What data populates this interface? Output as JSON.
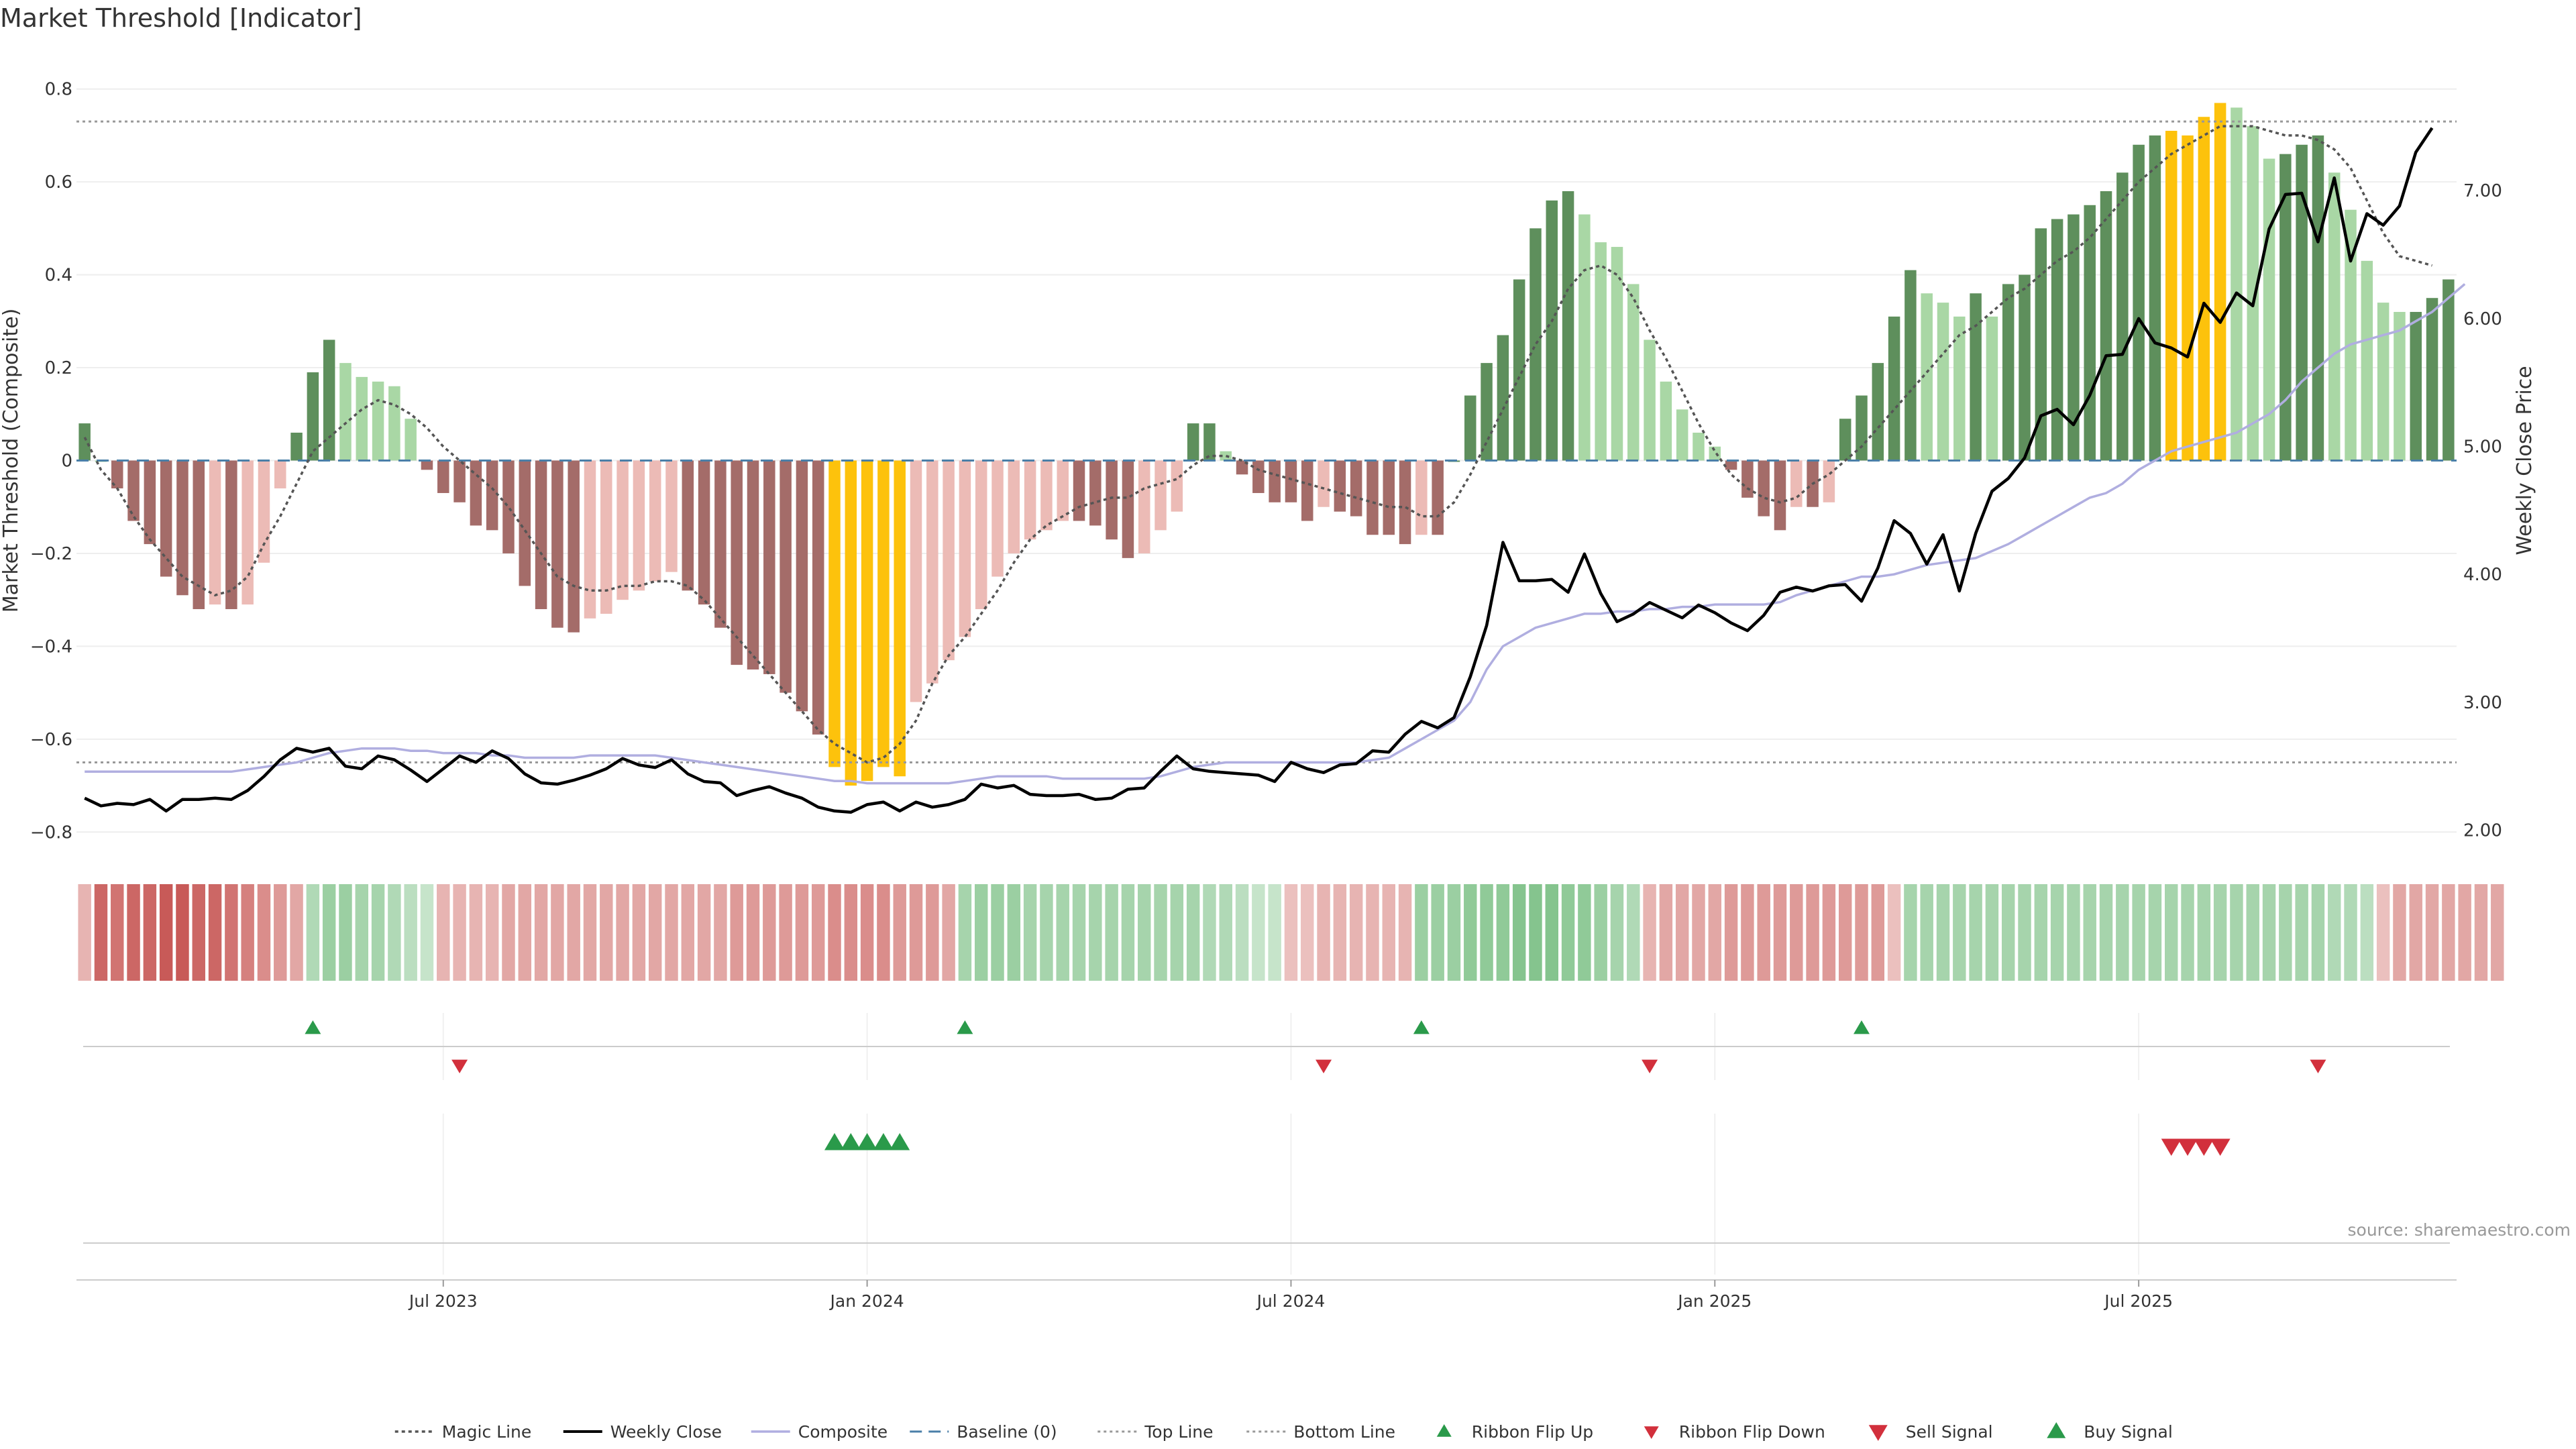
{
  "title": "Market Threshold [Indicator]",
  "source": "source: sharemaestro.com",
  "colors": {
    "bar_dark_green": "#5e8f5c",
    "bar_light_green": "#a9d7a5",
    "bar_dark_red": "#a46c69",
    "bar_light_red": "#ecbbb6",
    "bar_gold": "#fdc20c",
    "magic_line": "#555555",
    "weekly_close": "#000000",
    "composite": "#b0aee0",
    "baseline": "#4a7fa8",
    "threshold_line": "#999999",
    "buy": "#2a9a4a",
    "sell": "#d2303c"
  },
  "chart_data": {
    "type": "bar",
    "left_axis": {
      "label": "Market Threshold (Composite)",
      "ylim": [
        -0.84,
        0.84
      ],
      "ticks": [
        0.8,
        0.6,
        0.4,
        0.2,
        0,
        -0.2,
        -0.4,
        -0.6,
        -0.8
      ],
      "tick_labels": [
        "0.8",
        "0.6",
        "0.4",
        "0.2",
        "0",
        "−0.2",
        "−0.4",
        "−0.6",
        "−0.8"
      ]
    },
    "right_axis": {
      "label": "Weekly Close Price",
      "ylim": [
        1.84,
        7.94
      ],
      "ticks": [
        7.0,
        6.0,
        5.0,
        4.0,
        3.0,
        2.0
      ],
      "tick_labels": [
        "7.00",
        "6.00",
        "5.00",
        "4.00",
        "3.00",
        "2.00"
      ]
    },
    "x_ticks": [
      {
        "label": "Jul 2023",
        "week": 22
      },
      {
        "label": "Jan 2024",
        "week": 48
      },
      {
        "label": "Jul 2024",
        "week": 74
      },
      {
        "label": "Jan 2025",
        "week": 100
      },
      {
        "label": "Jul 2025",
        "week": 126
      }
    ],
    "top_line": 0.73,
    "bottom_line": -0.65,
    "baseline": 0,
    "composite_bars": [
      0.08,
      0.0,
      -0.06,
      -0.13,
      -0.18,
      -0.25,
      -0.29,
      -0.32,
      -0.31,
      -0.32,
      -0.31,
      -0.22,
      -0.06,
      0.06,
      0.19,
      0.26,
      0.21,
      0.18,
      0.17,
      0.16,
      0.09,
      -0.02,
      -0.07,
      -0.09,
      -0.14,
      -0.15,
      -0.2,
      -0.27,
      -0.32,
      -0.36,
      -0.37,
      -0.34,
      -0.33,
      -0.3,
      -0.28,
      -0.26,
      -0.24,
      -0.28,
      -0.31,
      -0.36,
      -0.44,
      -0.45,
      -0.46,
      -0.5,
      -0.54,
      -0.59,
      -0.66,
      -0.7,
      -0.69,
      -0.66,
      -0.68,
      -0.52,
      -0.48,
      -0.43,
      -0.38,
      -0.32,
      -0.25,
      -0.2,
      -0.17,
      -0.15,
      -0.13,
      -0.13,
      -0.14,
      -0.17,
      -0.21,
      -0.2,
      -0.15,
      -0.11,
      0.08,
      0.08,
      0.02,
      -0.03,
      -0.07,
      -0.09,
      -0.09,
      -0.13,
      -0.1,
      -0.11,
      -0.12,
      -0.16,
      -0.16,
      -0.18,
      -0.16,
      -0.16,
      0.0,
      0.14,
      0.21,
      0.27,
      0.39,
      0.5,
      0.56,
      0.58,
      0.53,
      0.47,
      0.46,
      0.38,
      0.26,
      0.17,
      0.11,
      0.06,
      0.03,
      -0.02,
      -0.08,
      -0.12,
      -0.15,
      -0.1,
      -0.1,
      -0.09,
      0.09,
      0.14,
      0.21,
      0.31,
      0.41,
      0.36,
      0.34,
      0.31,
      0.36,
      0.31,
      0.38,
      0.4,
      0.5,
      0.52,
      0.53,
      0.55,
      0.58,
      0.62,
      0.68,
      0.7,
      0.71,
      0.7,
      0.74,
      0.77,
      0.76,
      0.72,
      0.65,
      0.66,
      0.68,
      0.7,
      0.62,
      0.54,
      0.43,
      0.34,
      0.32,
      0.32,
      0.35,
      0.39
    ],
    "gold_bar_indices": [
      46,
      47,
      48,
      49,
      50,
      128,
      129,
      130,
      131
    ],
    "weekly_close": [
      2.25,
      2.19,
      2.21,
      2.2,
      2.24,
      2.15,
      2.24,
      2.24,
      2.25,
      2.24,
      2.31,
      2.42,
      2.55,
      2.64,
      2.61,
      2.64,
      2.5,
      2.48,
      2.58,
      2.55,
      2.47,
      2.38,
      2.48,
      2.58,
      2.53,
      2.62,
      2.56,
      2.44,
      2.37,
      2.36,
      2.39,
      2.43,
      2.48,
      2.56,
      2.51,
      2.49,
      2.55,
      2.44,
      2.38,
      2.37,
      2.27,
      2.31,
      2.34,
      2.29,
      2.25,
      2.18,
      2.15,
      2.14,
      2.2,
      2.22,
      2.15,
      2.22,
      2.18,
      2.2,
      2.24,
      2.36,
      2.33,
      2.35,
      2.28,
      2.27,
      2.27,
      2.28,
      2.24,
      2.25,
      2.32,
      2.33,
      2.46,
      2.58,
      2.48,
      2.46,
      2.45,
      2.44,
      2.43,
      2.38,
      2.53,
      2.48,
      2.45,
      2.51,
      2.52,
      2.62,
      2.61,
      2.75,
      2.85,
      2.8,
      2.88,
      3.2,
      3.6,
      4.25,
      3.95,
      3.95,
      3.96,
      3.86,
      4.16,
      3.85,
      3.63,
      3.69,
      3.78,
      3.72,
      3.66,
      3.76,
      3.7,
      3.62,
      3.56,
      3.68,
      3.86,
      3.9,
      3.87,
      3.91,
      3.92,
      3.79,
      4.05,
      4.42,
      4.32,
      4.08,
      4.31,
      3.87,
      4.32,
      4.65,
      4.75,
      4.91,
      5.24,
      5.29,
      5.17,
      5.4,
      5.71,
      5.72,
      6.0,
      5.81,
      5.77,
      5.7,
      6.12,
      5.97,
      6.2,
      6.1,
      6.7,
      6.97,
      6.98,
      6.6,
      7.1,
      6.45,
      6.82,
      6.73,
      6.88,
      7.3,
      7.49
    ],
    "composite_line": [
      -0.67,
      -0.67,
      -0.67,
      -0.67,
      -0.67,
      -0.67,
      -0.67,
      -0.67,
      -0.67,
      -0.67,
      -0.665,
      -0.66,
      -0.655,
      -0.65,
      -0.64,
      -0.63,
      -0.625,
      -0.62,
      -0.62,
      -0.62,
      -0.625,
      -0.625,
      -0.63,
      -0.63,
      -0.63,
      -0.635,
      -0.635,
      -0.64,
      -0.64,
      -0.64,
      -0.64,
      -0.635,
      -0.635,
      -0.635,
      -0.635,
      -0.635,
      -0.64,
      -0.645,
      -0.65,
      -0.655,
      -0.66,
      -0.665,
      -0.67,
      -0.675,
      -0.68,
      -0.685,
      -0.69,
      -0.69,
      -0.695,
      -0.695,
      -0.695,
      -0.695,
      -0.695,
      -0.695,
      -0.69,
      -0.685,
      -0.68,
      -0.68,
      -0.68,
      -0.68,
      -0.685,
      -0.685,
      -0.685,
      -0.685,
      -0.685,
      -0.685,
      -0.68,
      -0.67,
      -0.66,
      -0.655,
      -0.65,
      -0.65,
      -0.65,
      -0.65,
      -0.65,
      -0.65,
      -0.65,
      -0.65,
      -0.65,
      -0.645,
      -0.64,
      -0.62,
      -0.6,
      -0.58,
      -0.56,
      -0.52,
      -0.45,
      -0.4,
      -0.38,
      -0.36,
      -0.35,
      -0.34,
      -0.33,
      -0.33,
      -0.325,
      -0.325,
      -0.32,
      -0.32,
      -0.315,
      -0.315,
      -0.31,
      -0.31,
      -0.31,
      -0.31,
      -0.305,
      -0.29,
      -0.28,
      -0.27,
      -0.26,
      -0.25,
      -0.25,
      -0.245,
      -0.235,
      -0.225,
      -0.22,
      -0.215,
      -0.21,
      -0.195,
      -0.18,
      -0.16,
      -0.14,
      -0.12,
      -0.1,
      -0.08,
      -0.07,
      -0.05,
      -0.02,
      0.0,
      0.02,
      0.03,
      0.04,
      0.05,
      0.06,
      0.08,
      0.1,
      0.13,
      0.17,
      0.2,
      0.23,
      0.25,
      0.26,
      0.27,
      0.28,
      0.3,
      0.32,
      0.35,
      0.38
    ],
    "magic_line": [
      0.05,
      -0.02,
      -0.06,
      -0.12,
      -0.17,
      -0.21,
      -0.25,
      -0.27,
      -0.29,
      -0.28,
      -0.25,
      -0.18,
      -0.12,
      -0.05,
      0.02,
      0.05,
      0.08,
      0.11,
      0.13,
      0.12,
      0.1,
      0.07,
      0.03,
      0.0,
      -0.03,
      -0.06,
      -0.1,
      -0.15,
      -0.2,
      -0.25,
      -0.27,
      -0.28,
      -0.28,
      -0.27,
      -0.27,
      -0.26,
      -0.26,
      -0.27,
      -0.3,
      -0.34,
      -0.38,
      -0.42,
      -0.46,
      -0.5,
      -0.54,
      -0.58,
      -0.61,
      -0.63,
      -0.65,
      -0.64,
      -0.61,
      -0.56,
      -0.48,
      -0.42,
      -0.38,
      -0.33,
      -0.28,
      -0.22,
      -0.17,
      -0.14,
      -0.12,
      -0.1,
      -0.09,
      -0.08,
      -0.08,
      -0.06,
      -0.05,
      -0.04,
      -0.01,
      0.01,
      0.01,
      0.0,
      -0.02,
      -0.03,
      -0.04,
      -0.05,
      -0.06,
      -0.07,
      -0.08,
      -0.09,
      -0.1,
      -0.1,
      -0.12,
      -0.12,
      -0.09,
      -0.03,
      0.04,
      0.11,
      0.18,
      0.25,
      0.3,
      0.37,
      0.41,
      0.42,
      0.4,
      0.35,
      0.28,
      0.22,
      0.15,
      0.08,
      0.02,
      -0.03,
      -0.06,
      -0.08,
      -0.09,
      -0.08,
      -0.05,
      -0.03,
      0.0,
      0.03,
      0.07,
      0.11,
      0.15,
      0.19,
      0.23,
      0.27,
      0.29,
      0.32,
      0.35,
      0.37,
      0.4,
      0.43,
      0.45,
      0.48,
      0.52,
      0.56,
      0.6,
      0.63,
      0.66,
      0.68,
      0.7,
      0.72,
      0.72,
      0.72,
      0.71,
      0.7,
      0.7,
      0.69,
      0.67,
      0.63,
      0.56,
      0.49,
      0.44,
      0.43,
      0.42
    ],
    "ribbon": [
      -0.3,
      -0.9,
      -0.8,
      -0.9,
      -0.9,
      -1,
      -1,
      -0.9,
      -0.9,
      -0.8,
      -0.7,
      -0.6,
      -0.5,
      -0.4,
      0.4,
      0.6,
      0.6,
      0.5,
      0.5,
      0.4,
      0.3,
      0.2,
      -0.3,
      -0.3,
      -0.3,
      -0.3,
      -0.4,
      -0.4,
      -0.4,
      -0.4,
      -0.4,
      -0.4,
      -0.4,
      -0.4,
      -0.4,
      -0.4,
      -0.4,
      -0.4,
      -0.4,
      -0.4,
      -0.5,
      -0.5,
      -0.5,
      -0.5,
      -0.5,
      -0.5,
      -0.6,
      -0.6,
      -0.6,
      -0.6,
      -0.5,
      -0.5,
      -0.5,
      -0.4,
      0.5,
      0.6,
      0.6,
      0.6,
      0.5,
      0.5,
      0.5,
      0.5,
      0.5,
      0.5,
      0.5,
      0.5,
      0.5,
      0.5,
      0.5,
      0.4,
      0.4,
      0.3,
      0.2,
      0.2,
      -0.2,
      -0.2,
      -0.3,
      -0.3,
      -0.3,
      -0.3,
      -0.3,
      -0.3,
      0.6,
      0.6,
      0.6,
      0.7,
      0.7,
      0.7,
      0.8,
      0.8,
      0.8,
      0.7,
      0.7,
      0.6,
      0.5,
      0.4,
      -0.3,
      -0.4,
      -0.4,
      -0.4,
      -0.4,
      -0.5,
      -0.5,
      -0.5,
      -0.5,
      -0.5,
      -0.5,
      -0.5,
      -0.5,
      -0.5,
      -0.5,
      -0.2,
      0.5,
      0.5,
      0.5,
      0.5,
      0.5,
      0.5,
      0.5,
      0.5,
      0.5,
      0.5,
      0.5,
      0.5,
      0.5,
      0.5,
      0.5,
      0.5,
      0.5,
      0.5,
      0.5,
      0.5,
      0.5,
      0.5,
      0.5,
      0.5,
      0.5,
      0.5,
      0.4,
      0.4,
      0.3,
      -0.2,
      -0.4,
      -0.4,
      -0.4,
      -0.4,
      -0.4,
      -0.4,
      -0.4
    ],
    "ribbon_flip_up_weeks": [
      14,
      54,
      82,
      109
    ],
    "ribbon_flip_down_weeks": [
      23,
      76,
      96,
      137
    ],
    "buy_signal_weeks": [
      46,
      47,
      48,
      49,
      50
    ],
    "sell_signal_weeks": [
      128,
      129,
      130,
      131
    ],
    "legend": {
      "placement": "bottom-center",
      "entries": [
        {
          "key": "magic",
          "label": "Magic Line"
        },
        {
          "key": "close",
          "label": "Weekly Close"
        },
        {
          "key": "composite",
          "label": "Composite"
        },
        {
          "key": "baseline",
          "label": "Baseline (0)"
        },
        {
          "key": "top",
          "label": "Top Line"
        },
        {
          "key": "bottom",
          "label": "Bottom Line"
        },
        {
          "key": "flipup",
          "label": "Ribbon Flip Up"
        },
        {
          "key": "flipdown",
          "label": "Ribbon Flip Down"
        },
        {
          "key": "sell",
          "label": "Sell Signal"
        },
        {
          "key": "buy",
          "label": "Buy Signal"
        }
      ]
    }
  }
}
